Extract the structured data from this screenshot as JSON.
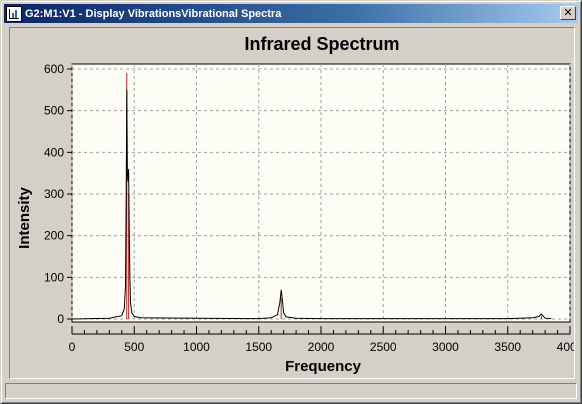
{
  "window": {
    "title": "G2:M1:V1 - Display VibrationsVibrational Spectra",
    "close_label": "✕",
    "icon": "spectrum-window-icon"
  },
  "colors": {
    "plot_background": "#fdfdf5",
    "chart_background": "#d4d0c8",
    "spectrum_line": "#000000",
    "stick_line": "#b02020",
    "grid": "#a0a0a0"
  },
  "chart_data": {
    "type": "line",
    "title": "Infrared Spectrum",
    "xlabel": "Frequency",
    "ylabel": "Intensity",
    "xlim": [
      0,
      4000
    ],
    "ylim": [
      0,
      600
    ],
    "xticks": [
      0,
      500,
      1000,
      1500,
      2000,
      2500,
      3000,
      3500,
      4000
    ],
    "yticks": [
      0,
      100,
      200,
      300,
      400,
      500,
      600
    ],
    "grid": true,
    "sticks": [
      {
        "x": 440,
        "y": 590
      },
      {
        "x": 455,
        "y": 300
      },
      {
        "x": 1680,
        "y": 50
      },
      {
        "x": 3770,
        "y": 8
      }
    ],
    "spectrum": {
      "x": [
        0,
        300,
        400,
        420,
        430,
        435,
        440,
        445,
        450,
        455,
        460,
        465,
        470,
        480,
        500,
        550,
        1000,
        1500,
        1600,
        1650,
        1670,
        1680,
        1690,
        1700,
        1720,
        1800,
        2000,
        2500,
        3000,
        3500,
        3700,
        3750,
        3770,
        3790,
        3800,
        3850
      ],
      "y": [
        0,
        2,
        8,
        25,
        80,
        300,
        550,
        350,
        330,
        360,
        200,
        100,
        40,
        15,
        6,
        3,
        2,
        1,
        3,
        10,
        40,
        70,
        45,
        15,
        5,
        2,
        1,
        1,
        1,
        1,
        3,
        6,
        12,
        5,
        2,
        1
      ]
    }
  }
}
